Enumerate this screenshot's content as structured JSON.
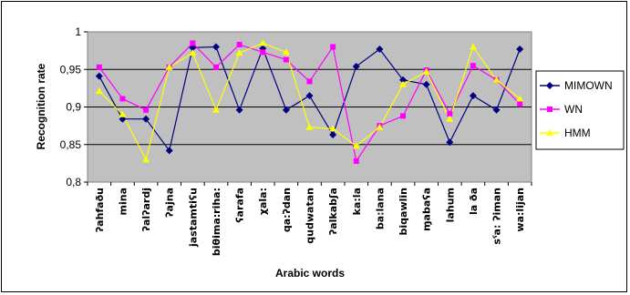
{
  "chart_data": {
    "type": "line",
    "xlabel": "Arabic words",
    "ylabel": "Recognition rate",
    "ylim": [
      0.8,
      1.0
    ],
    "yticks": [
      "0,8",
      "0,85",
      "0,9",
      "0,95",
      "1"
    ],
    "grid": "horizontal",
    "legend": "right",
    "categories": [
      "ʔahfaðu",
      "mina",
      "ʔalʔardj",
      "ʔajna",
      "jastamtiʕu",
      "biθima:riha:",
      "ʕarafa",
      "χala:",
      "qa:ʔdan",
      "qudwatan",
      "ʔalkabʃa",
      "ka:la",
      "ba:lana",
      "biqawlin",
      "ɱabaʕa",
      "lahum",
      "la ða",
      "sˤa: ʔiman",
      "wa:lijan"
    ],
    "series": [
      {
        "name": "MIMOWN",
        "color": "#000080",
        "marker": "diamond",
        "values": [
          0.941,
          0.884,
          0.884,
          0.842,
          0.979,
          0.98,
          0.896,
          0.978,
          0.896,
          0.915,
          0.863,
          0.954,
          0.977,
          0.936,
          0.93,
          0.853,
          0.915,
          0.896,
          0.977
        ]
      },
      {
        "name": "WN",
        "color": "#FF00FF",
        "marker": "square",
        "values": [
          0.953,
          0.911,
          0.896,
          0.953,
          0.985,
          0.953,
          0.983,
          0.973,
          0.963,
          0.934,
          0.98,
          0.828,
          0.875,
          0.888,
          0.949,
          0.891,
          0.955,
          0.936,
          0.904
        ]
      },
      {
        "name": "HMM",
        "color": "#FFFF00",
        "marker": "triangle",
        "values": [
          0.921,
          0.89,
          0.83,
          0.953,
          0.972,
          0.896,
          0.972,
          0.985,
          0.973,
          0.873,
          0.871,
          0.848,
          0.873,
          0.93,
          0.947,
          0.884,
          0.98,
          0.936,
          0.911
        ]
      }
    ]
  }
}
